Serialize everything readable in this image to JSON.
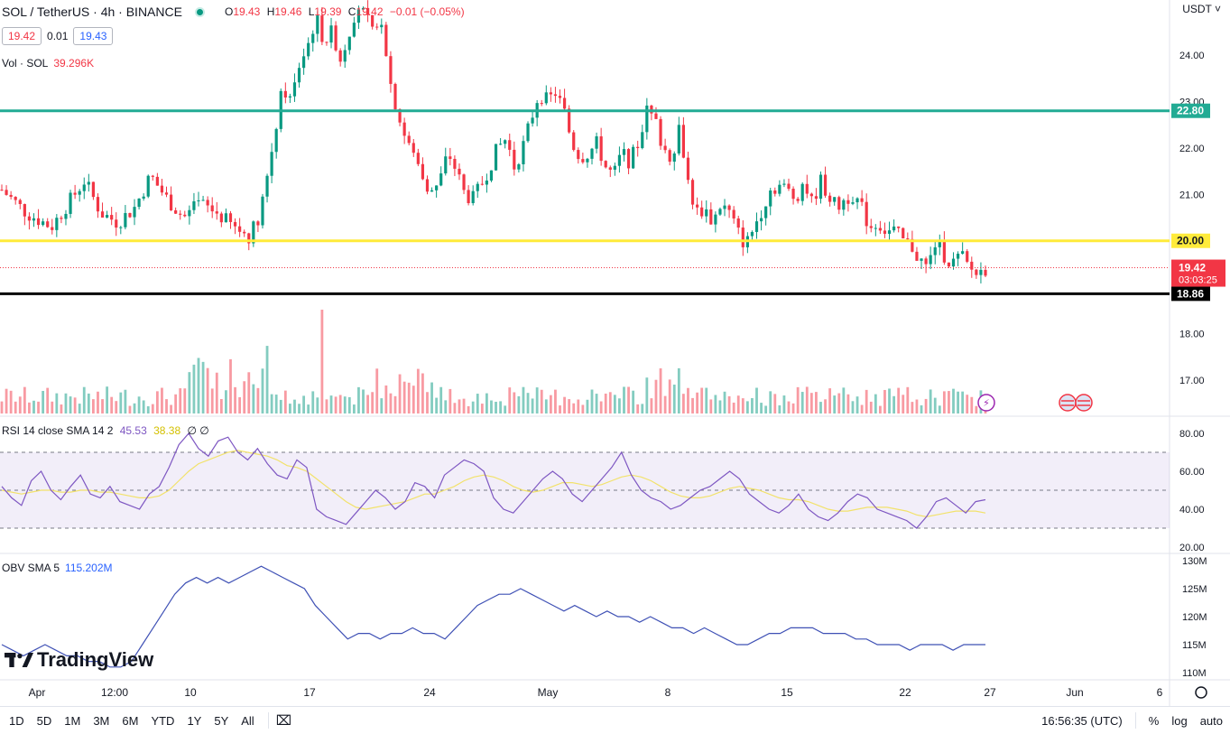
{
  "header": {
    "symbol_title": "SOL / TetherUS · 4h · BINANCE",
    "ohlc": {
      "o_label": "O",
      "o": "19.43",
      "h_label": "H",
      "h": "19.46",
      "l_label": "L",
      "l": "19.39",
      "c_label": "C",
      "c": "19.42",
      "change": "−0.01 (−0.05%)"
    },
    "bid": "19.42",
    "spread": "0.01",
    "ask": "19.43",
    "currency": "USDT ˅"
  },
  "volume_legend": {
    "label": "Vol · SOL",
    "value": "39.296K"
  },
  "rsi_legend": {
    "label": "RSI 14 close SMA 14 2",
    "rsi": "45.53",
    "sma": "38.38",
    "extra": "∅ ∅"
  },
  "obv_legend": {
    "label": "OBV SMA 5",
    "value": "115.202M"
  },
  "logo": {
    "text": "TradingView"
  },
  "bottom_bar": {
    "ranges": [
      "1D",
      "5D",
      "1M",
      "3M",
      "6M",
      "YTD",
      "1Y",
      "5Y",
      "All"
    ],
    "time": "16:56:35 (UTC)",
    "percent": "%",
    "log": "log",
    "auto": "auto"
  },
  "colors": {
    "up": "#089981",
    "down": "#f23645",
    "level_green": "#22ab94",
    "level_yellow": "#ffeb3b",
    "level_black": "#000000",
    "rsi": "#7e57c2",
    "rsi_sma": "#f2e26b",
    "obv": "#3f51b5"
  },
  "chart_data": [
    {
      "type": "candlestick",
      "panel": "price",
      "y_ticks": [
        "24.00",
        "23.00",
        "22.00",
        "21.00",
        "18.00",
        "17.00"
      ],
      "ylim": [
        16.3,
        25.2
      ],
      "x_ticks": [
        "Apr",
        "12:00",
        "10",
        "17",
        "24",
        "May",
        "8",
        "15",
        "22",
        "27",
        "Jun",
        "6"
      ],
      "levels": [
        {
          "value": 22.8,
          "label": "22.80",
          "color": "#22ab94"
        },
        {
          "value": 20.0,
          "label": "20.00",
          "color": "#ffeb3b"
        },
        {
          "value": 18.86,
          "label": "18.86",
          "color": "#000000"
        }
      ],
      "last_price": {
        "value": 19.42,
        "label": "19.42",
        "countdown": "03:03:25"
      },
      "close_path": [
        [
          0,
          21.1
        ],
        [
          3,
          20.6
        ],
        [
          6,
          20.3
        ],
        [
          8,
          20.8
        ],
        [
          10,
          21.3
        ],
        [
          12,
          20.6
        ],
        [
          14,
          20.4
        ],
        [
          16,
          20.7
        ],
        [
          18,
          21.4
        ],
        [
          20,
          20.9
        ],
        [
          22,
          20.5
        ],
        [
          24,
          20.8
        ],
        [
          26,
          20.6
        ],
        [
          28,
          20.3
        ],
        [
          30,
          20.1
        ],
        [
          31,
          20.5
        ],
        [
          32,
          21.3
        ],
        [
          33,
          22.3
        ],
        [
          34,
          23.3
        ],
        [
          35,
          23.0
        ],
        [
          36,
          23.8
        ],
        [
          37,
          24.2
        ],
        [
          38,
          24.8
        ],
        [
          39,
          24.3
        ],
        [
          40,
          24.5
        ],
        [
          41,
          23.9
        ],
        [
          42,
          24.5
        ],
        [
          43,
          25.1
        ],
        [
          44,
          24.8
        ],
        [
          45,
          24.4
        ],
        [
          46,
          24.8
        ],
        [
          47,
          23.4
        ],
        [
          48,
          22.7
        ],
        [
          49,
          22.1
        ],
        [
          50,
          21.8
        ],
        [
          51,
          21.4
        ],
        [
          52,
          21.0
        ],
        [
          53,
          21.3
        ],
        [
          54,
          21.9
        ],
        [
          55,
          21.5
        ],
        [
          56,
          21.0
        ],
        [
          57,
          20.9
        ],
        [
          58,
          21.2
        ],
        [
          59,
          21.6
        ],
        [
          60,
          22.0
        ],
        [
          61,
          22.2
        ],
        [
          62,
          21.6
        ],
        [
          63,
          22.0
        ],
        [
          64,
          22.6
        ],
        [
          65,
          23.2
        ],
        [
          66,
          23.0
        ],
        [
          67,
          23.2
        ],
        [
          68,
          22.8
        ],
        [
          69,
          22.1
        ],
        [
          70,
          21.8
        ],
        [
          71,
          21.9
        ],
        [
          72,
          22.1
        ],
        [
          73,
          21.6
        ],
        [
          74,
          21.4
        ],
        [
          75,
          21.9
        ],
        [
          76,
          21.7
        ],
        [
          77,
          22.1
        ],
        [
          78,
          22.8
        ],
        [
          79,
          22.6
        ],
        [
          80,
          22.0
        ],
        [
          81,
          21.8
        ],
        [
          82,
          22.5
        ],
        [
          83,
          21.3
        ],
        [
          84,
          20.6
        ],
        [
          85,
          20.7
        ],
        [
          86,
          20.4
        ],
        [
          87,
          20.8
        ],
        [
          88,
          20.6
        ],
        [
          89,
          20.2
        ],
        [
          90,
          19.9
        ],
        [
          91,
          20.3
        ],
        [
          92,
          20.7
        ],
        [
          93,
          21.1
        ],
        [
          94,
          21.2
        ],
        [
          95,
          21.1
        ],
        [
          96,
          20.9
        ],
        [
          97,
          21.3
        ],
        [
          98,
          20.8
        ],
        [
          99,
          21.3
        ],
        [
          100,
          21.0
        ],
        [
          101,
          20.7
        ],
        [
          102,
          20.9
        ],
        [
          103,
          21.0
        ],
        [
          104,
          20.7
        ],
        [
          105,
          20.3
        ],
        [
          106,
          20.4
        ],
        [
          107,
          20.2
        ],
        [
          108,
          20.2
        ],
        [
          109,
          20.0
        ],
        [
          110,
          19.9
        ],
        [
          111,
          19.6
        ],
        [
          112,
          19.4
        ],
        [
          113,
          20.0
        ],
        [
          114,
          19.7
        ],
        [
          115,
          19.5
        ],
        [
          116,
          19.7
        ],
        [
          117,
          19.4
        ],
        [
          118,
          19.3
        ],
        [
          119,
          19.4
        ]
      ],
      "volume_note": "volume bars per candle, colored by direction"
    },
    {
      "type": "line",
      "panel": "rsi",
      "y_ticks": [
        "80.00",
        "60.00",
        "40.00",
        "20.00"
      ],
      "ylim": [
        20,
        82
      ],
      "bands": [
        70,
        50,
        30
      ],
      "series": [
        {
          "key": "rsi",
          "values": [
            52,
            46,
            42,
            55,
            60,
            50,
            45,
            52,
            58,
            48,
            46,
            52,
            44,
            42,
            40,
            48,
            52,
            62,
            74,
            80,
            72,
            68,
            76,
            78,
            70,
            66,
            72,
            64,
            58,
            56,
            66,
            62,
            40,
            36,
            34,
            32,
            38,
            44,
            50,
            46,
            40,
            44,
            54,
            52,
            46,
            58,
            62,
            66,
            64,
            60,
            46,
            40,
            38,
            44,
            50,
            56,
            60,
            56,
            48,
            44,
            50,
            56,
            62,
            70,
            58,
            50,
            46,
            44,
            40,
            42,
            46,
            50,
            52,
            56,
            60,
            56,
            48,
            44,
            40,
            38,
            42,
            48,
            40,
            36,
            34,
            38,
            44,
            48,
            46,
            40,
            38,
            36,
            34,
            30,
            36,
            44,
            46,
            42,
            38,
            44,
            45
          ]
        },
        {
          "key": "sma",
          "values": [
            50,
            49,
            48,
            49,
            50,
            50,
            49,
            49,
            50,
            50,
            49,
            49,
            48,
            47,
            46,
            46,
            47,
            50,
            55,
            60,
            64,
            66,
            68,
            70,
            71,
            70,
            69,
            68,
            66,
            63,
            62,
            60,
            56,
            52,
            48,
            44,
            41,
            40,
            41,
            42,
            43,
            44,
            46,
            48,
            48,
            50,
            52,
            55,
            57,
            58,
            57,
            55,
            52,
            50,
            49,
            50,
            52,
            54,
            54,
            53,
            52,
            53,
            55,
            57,
            58,
            57,
            55,
            52,
            49,
            47,
            46,
            46,
            47,
            49,
            51,
            52,
            51,
            50,
            48,
            46,
            45,
            45,
            44,
            42,
            40,
            39,
            39,
            40,
            41,
            41,
            41,
            40,
            39,
            37,
            36,
            37,
            38,
            39,
            39,
            39,
            38
          ]
        }
      ]
    },
    {
      "type": "line",
      "panel": "obv",
      "y_ticks": [
        "130M",
        "125M",
        "120M",
        "115M",
        "110M"
      ],
      "ylim": [
        109.5,
        130.5
      ],
      "series": [
        {
          "key": "obv",
          "values": [
            115,
            114,
            113,
            114,
            115,
            114,
            113,
            113,
            112,
            112,
            111,
            111,
            112,
            115,
            118,
            121,
            124,
            126,
            127,
            126,
            127,
            126,
            127,
            128,
            129,
            128,
            127,
            126,
            125,
            122,
            120,
            118,
            116,
            117,
            117,
            116,
            117,
            117,
            118,
            117,
            117,
            116,
            118,
            120,
            122,
            123,
            124,
            124,
            125,
            124,
            123,
            122,
            121,
            122,
            121,
            120,
            121,
            120,
            120,
            119,
            120,
            119,
            118,
            118,
            117,
            118,
            117,
            116,
            115,
            115,
            116,
            117,
            117,
            118,
            118,
            118,
            117,
            117,
            117,
            116,
            116,
            115,
            115,
            115,
            114,
            115,
            115,
            115,
            114,
            115,
            115,
            115
          ]
        }
      ]
    }
  ]
}
